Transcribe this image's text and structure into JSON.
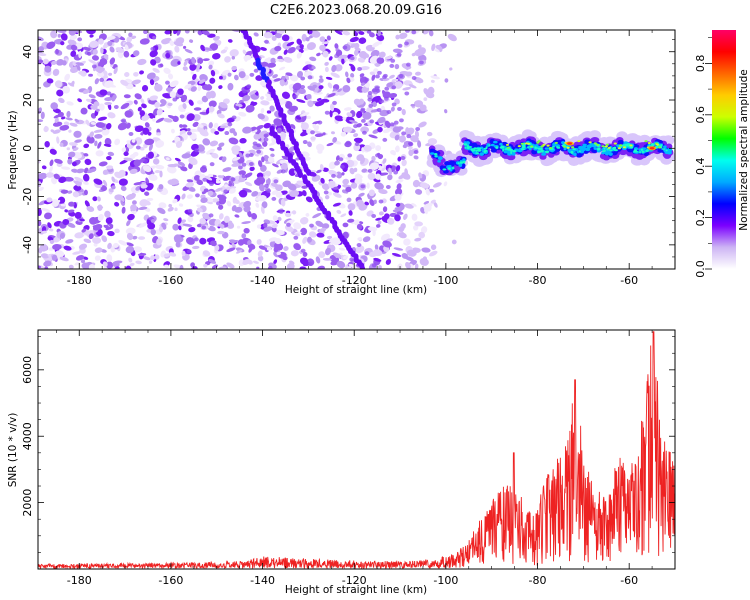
{
  "title": "C2E6.2023.068.20.09.G16",
  "chart_data": [
    {
      "type": "heatmap",
      "xlabel": "Height of straight line (km)",
      "ylabel": "Frequency (Hz)",
      "xlim": [
        -189,
        -50
      ],
      "ylim": [
        -50,
        49
      ],
      "xticks": [
        -180,
        -160,
        -140,
        -120,
        -100,
        -80,
        -60
      ],
      "yticks": [
        -40,
        -20,
        0,
        20,
        40
      ],
      "xtick_labels": [
        "-180",
        "-160",
        "-140",
        "-120",
        "-100",
        "-80",
        "-60"
      ],
      "ytick_labels": [
        "-40",
        "-20",
        "0",
        "20",
        "40"
      ],
      "noise_region_x": [
        -189,
        -103
      ],
      "signal_band": {
        "x_start": -103,
        "x_end": -51,
        "frequency": 0
      },
      "diagonal_streaks": [
        {
          "x": [
            -144,
            -130
          ],
          "y": [
            49,
            -10
          ]
        },
        {
          "x": [
            -138,
            -118
          ],
          "y": [
            8,
            -50
          ]
        }
      ],
      "hot_spots": [
        {
          "x": -73,
          "y": 2,
          "amplitude": 0.8
        },
        {
          "x": -55,
          "y": 0,
          "amplitude": 0.85
        }
      ],
      "colorbar": {
        "label": "Normalized spectral amplitude",
        "range": [
          0.0,
          0.93
        ],
        "ticks": [
          0.0,
          0.2,
          0.4,
          0.6,
          0.8
        ],
        "tick_labels": [
          "0.0",
          "0.2",
          "0.4",
          "0.6",
          "0.8"
        ],
        "colors": [
          "#ffffff",
          "#cdb4f4",
          "#7b00ff",
          "#0000ff",
          "#00aaff",
          "#00ffee",
          "#00ff00",
          "#ccff00",
          "#ffcc00",
          "#ff6600",
          "#ff0000",
          "#ff0066"
        ]
      },
      "grid": false
    },
    {
      "type": "line",
      "xlabel": "Height of straight line (km)",
      "ylabel": "SNR (10 * v/v)",
      "xlim": [
        -189,
        -50
      ],
      "ylim": [
        0,
        7200
      ],
      "xticks": [
        -180,
        -160,
        -140,
        -120,
        -100,
        -80,
        -60
      ],
      "yticks": [
        2000,
        4000,
        6000
      ],
      "xtick_labels": [
        "-180",
        "-160",
        "-140",
        "-120",
        "-100",
        "-80",
        "-60"
      ],
      "ytick_labels": [
        "2000",
        "4000",
        "6000"
      ],
      "color": "#ee2222",
      "envelope": {
        "x": [
          -189,
          -160,
          -145,
          -140,
          -135,
          -125,
          -118,
          -110,
          -103,
          -98,
          -95,
          -92,
          -90,
          -88,
          -86,
          -84,
          -82,
          -80,
          -78,
          -76,
          -74,
          -72,
          -70,
          -68,
          -66,
          -64,
          -62,
          -60,
          -58,
          -56,
          -54.5,
          -53,
          -51,
          -50
        ],
        "y": [
          130,
          160,
          220,
          360,
          330,
          260,
          230,
          210,
          260,
          480,
          900,
          1700,
          2200,
          2500,
          2700,
          2300,
          1800,
          2000,
          2800,
          3500,
          4000,
          5400,
          3900,
          2500,
          2300,
          2800,
          3500,
          3000,
          3700,
          6500,
          7100,
          4500,
          3600,
          3000
        ]
      },
      "spikes": [
        {
          "x": -85.2,
          "y": 3500
        },
        {
          "x": -71.8,
          "y": 5700
        },
        {
          "x": -54.7,
          "y": 7150
        }
      ],
      "grid": false
    }
  ]
}
